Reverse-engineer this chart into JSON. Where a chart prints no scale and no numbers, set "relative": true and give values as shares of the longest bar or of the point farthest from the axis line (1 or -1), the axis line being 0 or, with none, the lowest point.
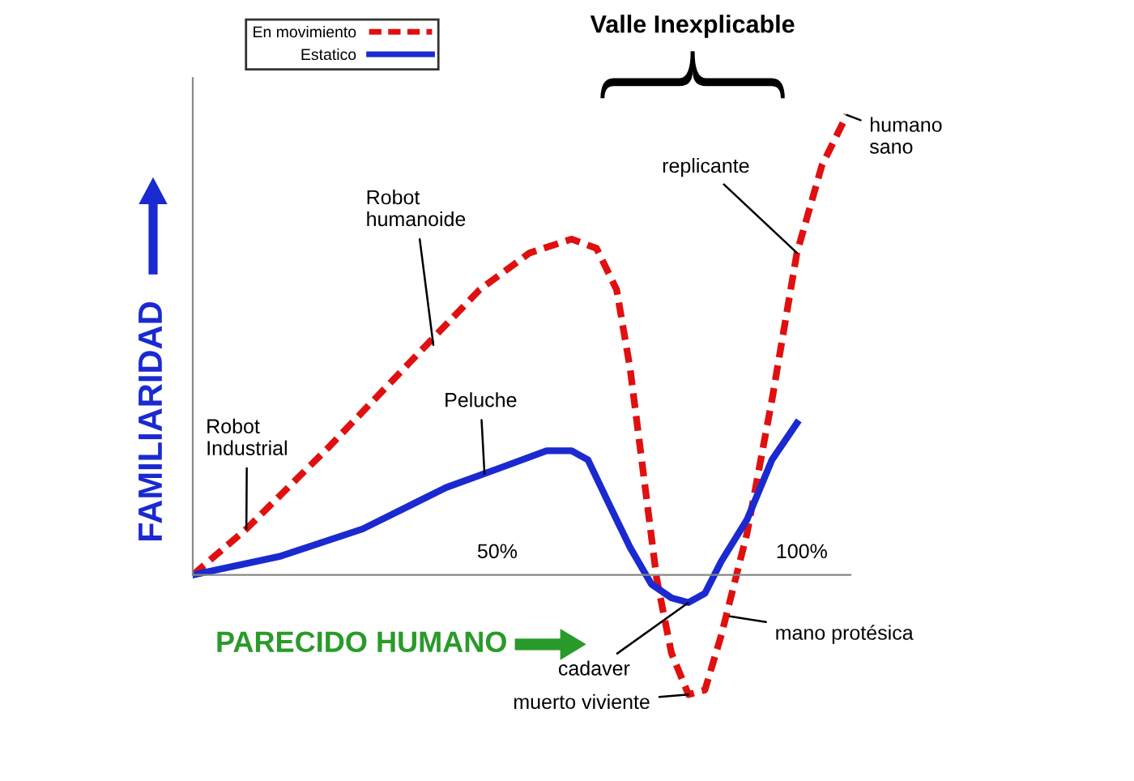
{
  "chart_data": {
    "type": "line",
    "relative": true,
    "xlabel": "PARECIDO HUMANO",
    "ylabel": "FAMILIARIDAD",
    "legend": "top left",
    "xlim": [
      0,
      108
    ],
    "xticks": [
      {
        "value": 50,
        "label": "50%"
      },
      {
        "value": 100,
        "label": "100%"
      }
    ],
    "series": [
      {
        "name": "En movimiento",
        "color": "#e01010",
        "line_style": "dashed",
        "x": [
          0,
          8.8,
          22.5,
          36.2,
          47.1,
          55.3,
          62.2,
          66.3,
          69.6,
          71.8,
          74.0,
          76.2,
          78.6,
          81.4,
          84.1,
          86.8,
          91.0,
          95.1,
          99.2,
          103.3,
          107.4
        ],
        "values": [
          0,
          0.1,
          0.28,
          0.47,
          0.62,
          0.7,
          0.73,
          0.71,
          0.62,
          0.45,
          0.22,
          -0.01,
          -0.17,
          -0.26,
          -0.25,
          -0.13,
          0.09,
          0.38,
          0.7,
          0.89,
          1.0
        ]
      },
      {
        "name": "Estatico",
        "color": "#1a2ad0",
        "line_style": "solid",
        "x": [
          0,
          14.2,
          27.9,
          41.6,
          49.9,
          58.1,
          62.2,
          64.9,
          68.5,
          71.8,
          75.3,
          78.6,
          81.4,
          84.1,
          86.8,
          91.0,
          95.1,
          99.2
        ],
        "values": [
          0,
          0.04,
          0.1,
          0.19,
          0.23,
          0.27,
          0.27,
          0.25,
          0.15,
          0.06,
          -0.02,
          -0.05,
          -0.06,
          -0.04,
          0.03,
          0.12,
          0.25,
          0.33
        ]
      }
    ],
    "annotations": [
      {
        "text": "Robot\nIndustrial",
        "x": 8.8,
        "y": 0.1
      },
      {
        "text": "Robot\nhumanoide",
        "x": 39.5,
        "y": 0.5
      },
      {
        "text": "Peluche",
        "x": 47.9,
        "y": 0.22
      },
      {
        "text": "humano\nsano",
        "x": 107.4,
        "y": 1.0
      },
      {
        "text": "replicante",
        "x": 99.2,
        "y": 0.7
      },
      {
        "text": "mano protésica",
        "x": 88.2,
        "y": -0.09
      },
      {
        "text": "cadaver",
        "x": 81.4,
        "y": -0.06
      },
      {
        "text": "muerto viviente",
        "x": 81.4,
        "y": -0.26
      },
      "Valle Inexplicable"
    ]
  }
}
